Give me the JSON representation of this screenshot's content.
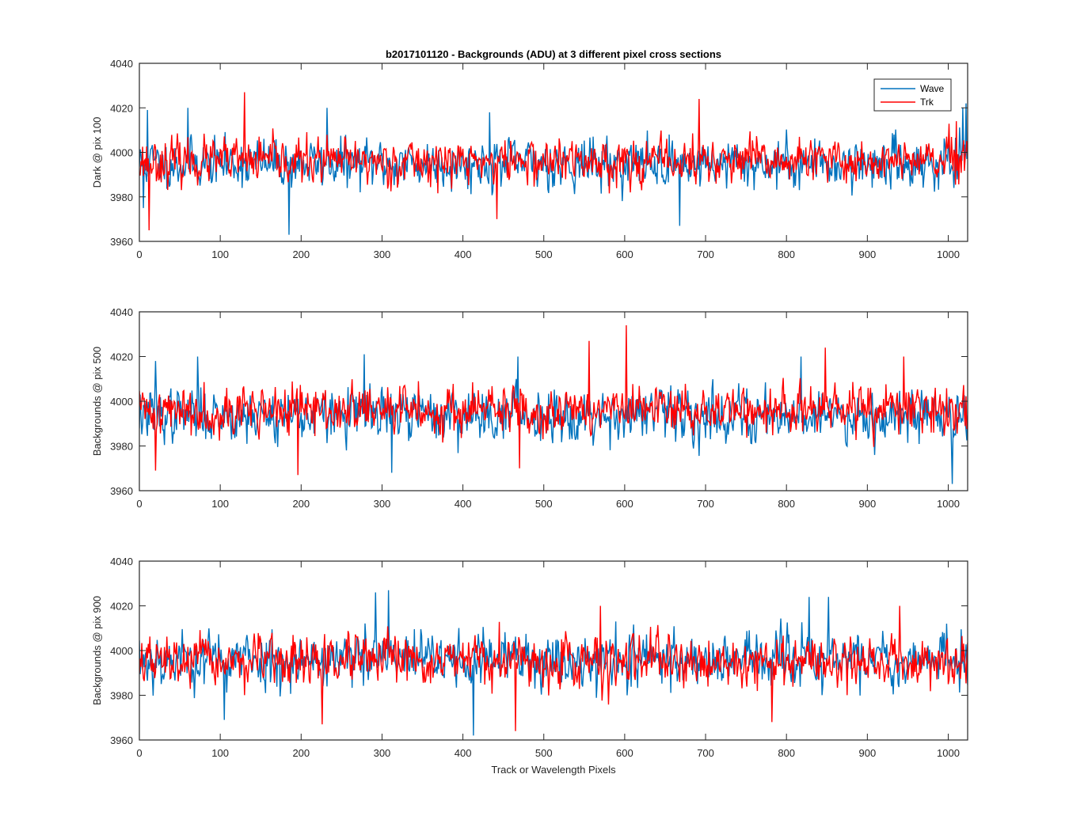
{
  "figure": {
    "title": "b2017101120 - Backgrounds (ADU) at 3 different pixel cross sections",
    "xlabel": "Track or Wavelength Pixels"
  },
  "chart_data": [
    {
      "type": "line",
      "ylabel": "Dark @ pix 100",
      "xlim": [
        0,
        1024
      ],
      "ylim": [
        3960,
        4040
      ],
      "xticks": [
        0,
        100,
        200,
        300,
        400,
        500,
        600,
        700,
        800,
        900,
        1000
      ],
      "yticks": [
        3960,
        3980,
        4000,
        4020,
        4040
      ],
      "legend": {
        "placement": "top-right",
        "entries": [
          "Wave",
          "Trk"
        ]
      },
      "series": [
        {
          "name": "Wave",
          "color": "#0072BD",
          "mean": 3995,
          "spread": 6.5,
          "seed": 11,
          "spikes": [
            [
              5,
              3975
            ],
            [
              10,
              4019
            ],
            [
              60,
              4020
            ],
            [
              185,
              3963
            ],
            [
              232,
              4020
            ],
            [
              433,
              4018
            ],
            [
              668,
              3967
            ],
            [
              1018,
              4020
            ],
            [
              1022,
              4022
            ]
          ]
        },
        {
          "name": "Trk",
          "color": "#FF0000",
          "mean": 3996,
          "spread": 6.0,
          "seed": 23,
          "spikes": [
            [
              12,
              3965
            ],
            [
              130,
              4027
            ],
            [
              442,
              3970
            ],
            [
              692,
              4024
            ],
            [
              1010,
              4014
            ]
          ]
        }
      ]
    },
    {
      "type": "line",
      "ylabel": "Backgrounds @ pix 500",
      "xlim": [
        0,
        1024
      ],
      "ylim": [
        3960,
        4040
      ],
      "xticks": [
        0,
        100,
        200,
        300,
        400,
        500,
        600,
        700,
        800,
        900,
        1000
      ],
      "yticks": [
        3960,
        3980,
        4000,
        4020,
        4040
      ],
      "legend": null,
      "series": [
        {
          "name": "Wave",
          "color": "#0072BD",
          "mean": 3994,
          "spread": 7.0,
          "seed": 37,
          "spikes": [
            [
              20,
              4018
            ],
            [
              72,
              4020
            ],
            [
              278,
              4021
            ],
            [
              312,
              3968
            ],
            [
              468,
              4020
            ],
            [
              818,
              4020
            ],
            [
              1005,
              3963
            ]
          ]
        },
        {
          "name": "Trk",
          "color": "#FF0000",
          "mean": 3996,
          "spread": 6.5,
          "seed": 41,
          "spikes": [
            [
              20,
              3969
            ],
            [
              196,
              3967
            ],
            [
              470,
              3970
            ],
            [
              556,
              4027
            ],
            [
              602,
              4034
            ],
            [
              848,
              4024
            ],
            [
              945,
              4020
            ]
          ]
        }
      ]
    },
    {
      "type": "line",
      "ylabel": "Backgrounds @ pix 900",
      "xlim": [
        0,
        1024
      ],
      "ylim": [
        3960,
        4040
      ],
      "xticks": [
        0,
        100,
        200,
        300,
        400,
        500,
        600,
        700,
        800,
        900,
        1000
      ],
      "yticks": [
        3960,
        3980,
        4000,
        4020,
        4040
      ],
      "legend": null,
      "series": [
        {
          "name": "Wave",
          "color": "#0072BD",
          "mean": 3996,
          "spread": 7.5,
          "seed": 53,
          "spikes": [
            [
              105,
              3969
            ],
            [
              292,
              4026
            ],
            [
              308,
              4027
            ],
            [
              413,
              3962
            ],
            [
              828,
              4024
            ],
            [
              852,
              4024
            ]
          ]
        },
        {
          "name": "Trk",
          "color": "#FF0000",
          "mean": 3995,
          "spread": 6.5,
          "seed": 67,
          "spikes": [
            [
              226,
              3967
            ],
            [
              465,
              3964
            ],
            [
              570,
              4020
            ],
            [
              782,
              3968
            ],
            [
              940,
              4020
            ]
          ]
        }
      ]
    }
  ]
}
